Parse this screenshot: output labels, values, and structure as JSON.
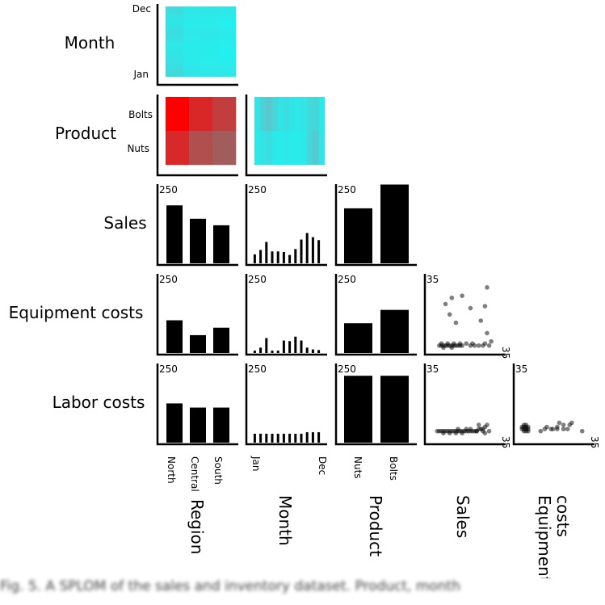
{
  "chart_data": {
    "type": "scatterplot-matrix",
    "row_labels": [
      "Month",
      "Product",
      "Sales",
      "Equipment costs",
      "Labor costs"
    ],
    "column_labels": [
      "Region",
      "Month",
      "Product",
      "Sales",
      "Equipment\ncosts"
    ],
    "region_categories": [
      "North",
      "Central",
      "South"
    ],
    "month_categories": [
      "Jan",
      "Dec"
    ],
    "product_categories": [
      "Bolts",
      "Nuts"
    ],
    "product_x_categories": [
      "Nuts",
      "Bolts"
    ],
    "bar_axis_max": "250",
    "scatter_axis_max": "35",
    "colors": {
      "heat_base": "#22f0f0",
      "heat_hot": "#ff0000",
      "bars": "#000000",
      "points": "#000000"
    },
    "bars": {
      "sales_by_region": [
        195,
        150,
        128
      ],
      "sales_by_month": [
        30,
        45,
        72,
        40,
        40,
        38,
        28,
        48,
        80,
        102,
        88,
        78
      ],
      "sales_by_product": [
        185,
        265
      ],
      "equipment_by_region": [
        110,
        60,
        85
      ],
      "equipment_by_month": [
        8,
        18,
        50,
        8,
        8,
        42,
        40,
        55,
        42,
        18,
        12,
        10
      ],
      "equipment_by_product": [
        100,
        145
      ],
      "labor_by_region": [
        132,
        118,
        118
      ],
      "labor_by_month": [
        30,
        30,
        30,
        30,
        30,
        30,
        30,
        30,
        30,
        35,
        35,
        35
      ],
      "labor_by_product": [
        225,
        225
      ]
    },
    "heatmaps": {
      "month_by_region": [
        [
          0.25,
          0.1,
          0.12,
          0.1
        ],
        [
          0.15,
          0.08,
          0.08,
          0.05
        ],
        [
          0.12,
          0.05,
          0.05,
          0.0
        ],
        [
          0.2,
          0.1,
          0.1,
          0.08
        ],
        [
          0.18,
          0.08,
          0.1,
          0.05
        ],
        [
          0.1,
          0.05,
          0.05,
          0.03
        ],
        [
          0.12,
          0.08,
          0.05,
          0.0
        ],
        [
          0.15,
          0.05,
          0.05,
          0.02
        ],
        [
          0.2,
          0.1,
          0.08,
          0.08
        ],
        [
          0.25,
          0.12,
          0.1,
          0.1
        ]
      ],
      "product_by_region": [
        [
          1.0,
          0.72,
          0.55
        ],
        [
          0.7,
          0.42,
          0.32
        ]
      ],
      "product_by_month": [
        [
          0.15,
          0.35,
          0.45,
          0.3,
          0.15,
          0.2,
          0.12,
          0.1,
          0.15,
          0.25,
          0.3,
          0.1
        ],
        [
          0.1,
          0.15,
          0.2,
          0.1,
          0.05,
          0.1,
          0.05,
          0.05,
          0.1,
          0.3,
          0.4,
          0.15
        ]
      ]
    },
    "scatter": {
      "equipment_vs_sales": [
        [
          5,
          2
        ],
        [
          6,
          2
        ],
        [
          7,
          2
        ],
        [
          8,
          2
        ],
        [
          9,
          2
        ],
        [
          10,
          2
        ],
        [
          11,
          2
        ],
        [
          12,
          2
        ],
        [
          13,
          2
        ],
        [
          14,
          2
        ],
        [
          15,
          2
        ],
        [
          16,
          2
        ],
        [
          6,
          3
        ],
        [
          9,
          3
        ],
        [
          12,
          3
        ],
        [
          15,
          3
        ],
        [
          18,
          3
        ],
        [
          21,
          3
        ],
        [
          7,
          1
        ],
        [
          11,
          1
        ],
        [
          20,
          2
        ],
        [
          22,
          2
        ],
        [
          24,
          2
        ],
        [
          26,
          2
        ],
        [
          27,
          3
        ],
        [
          29,
          2
        ],
        [
          30,
          4
        ],
        [
          28,
          8
        ],
        [
          25,
          14
        ],
        [
          13,
          13
        ],
        [
          10,
          17
        ],
        [
          8,
          22
        ],
        [
          11,
          25
        ],
        [
          16,
          26
        ],
        [
          20,
          20
        ],
        [
          28,
          30
        ],
        [
          27,
          21
        ]
      ],
      "labor_vs_sales": [
        [
          4,
          4
        ],
        [
          5,
          4
        ],
        [
          6,
          4
        ],
        [
          7,
          4
        ],
        [
          8,
          4
        ],
        [
          9,
          4
        ],
        [
          10,
          4
        ],
        [
          11,
          4
        ],
        [
          12,
          4
        ],
        [
          13,
          4
        ],
        [
          14,
          4
        ],
        [
          15,
          4
        ],
        [
          16,
          4
        ],
        [
          17,
          4
        ],
        [
          18,
          4
        ],
        [
          19,
          4
        ],
        [
          20,
          4
        ],
        [
          21,
          4
        ],
        [
          22,
          4
        ],
        [
          23,
          4
        ],
        [
          7,
          3
        ],
        [
          10,
          3
        ],
        [
          13,
          3
        ],
        [
          16,
          3
        ],
        [
          14,
          5
        ],
        [
          18,
          5
        ],
        [
          20,
          5
        ],
        [
          24,
          5
        ],
        [
          25,
          5
        ],
        [
          26,
          5
        ],
        [
          27,
          6
        ],
        [
          24,
          7
        ],
        [
          28,
          7
        ],
        [
          23,
          4
        ],
        [
          26,
          4
        ],
        [
          27,
          3
        ],
        [
          29,
          4
        ]
      ],
      "labor_vs_equipment": [
        [
          3,
          4
        ],
        [
          3,
          5
        ],
        [
          3,
          6
        ],
        [
          4,
          4
        ],
        [
          4,
          5
        ],
        [
          4,
          6
        ],
        [
          5,
          4
        ],
        [
          5,
          5
        ],
        [
          3,
          7
        ],
        [
          4,
          7
        ],
        [
          2,
          5
        ],
        [
          2,
          6
        ],
        [
          5,
          6
        ],
        [
          11,
          4
        ],
        [
          13,
          5
        ],
        [
          14,
          6
        ],
        [
          16,
          5
        ],
        [
          17,
          5
        ],
        [
          19,
          6
        ],
        [
          19,
          5
        ],
        [
          20,
          8
        ],
        [
          22,
          7
        ],
        [
          22,
          5
        ],
        [
          24,
          5
        ],
        [
          25,
          7
        ],
        [
          26,
          8
        ],
        [
          31,
          4
        ]
      ]
    }
  },
  "caption": "Fig. 5. A SPLOM of the sales and inventory dataset. Product, month"
}
